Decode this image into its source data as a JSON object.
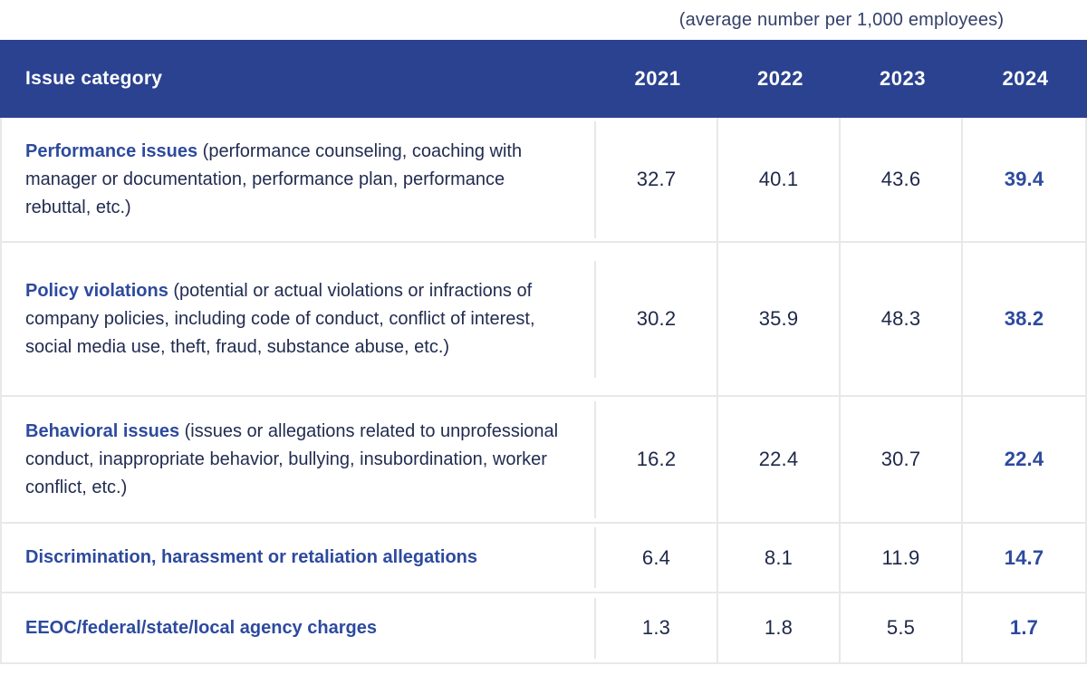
{
  "caption": "(average number per 1,000 employees)",
  "header": {
    "category_label": "Issue category",
    "years": [
      "2021",
      "2022",
      "2023",
      "2024"
    ]
  },
  "colors": {
    "header_bg": "#2b4290",
    "accent_blue": "#2d4a9e",
    "body_text": "#20294e",
    "grid_border": "#e8e8e8"
  },
  "rows": [
    {
      "title": "Performance issues",
      "desc": " (performance counseling, coaching with manager or documentation, performance plan, performance rebuttal, etc.)",
      "values": [
        "32.7",
        "40.1",
        "43.6",
        "39.4"
      ]
    },
    {
      "title": "Policy violations",
      "desc": " (potential or actual violations or infractions of company policies, including code of conduct, conflict of interest, social media use, theft, fraud, substance abuse, etc.)",
      "values": [
        "30.2",
        "35.9",
        "48.3",
        "38.2"
      ]
    },
    {
      "title": "Behavioral issues",
      "desc": " (issues or allegations related to unprofessional conduct, inappropriate behavior, bullying, insubordination, worker conflict, etc.)",
      "values": [
        "16.2",
        "22.4",
        "30.7",
        "22.4"
      ]
    },
    {
      "title": "Discrimination, harassment or retaliation allegations",
      "desc": "",
      "values": [
        "6.4",
        "8.1",
        "11.9",
        "14.7"
      ]
    },
    {
      "title": "EEOC/federal/state/local agency charges",
      "desc": "",
      "values": [
        "1.3",
        "1.8",
        "5.5",
        "1.7"
      ]
    }
  ],
  "chart_data": {
    "type": "table",
    "title": "(average number per 1,000 employees)",
    "columns": [
      "Issue category",
      "2021",
      "2022",
      "2023",
      "2024"
    ],
    "rows": [
      [
        "Performance issues (performance counseling, coaching with manager or documentation, performance plan, performance rebuttal, etc.)",
        32.7,
        40.1,
        43.6,
        39.4
      ],
      [
        "Policy violations (potential or actual violations or infractions of company policies, including code of conduct, conflict of interest, social media use, theft, fraud, substance abuse, etc.)",
        30.2,
        35.9,
        48.3,
        38.2
      ],
      [
        "Behavioral issues (issues or allegations related to unprofessional conduct, inappropriate behavior, bullying, insubordination, worker conflict, etc.)",
        16.2,
        22.4,
        30.7,
        22.4
      ],
      [
        "Discrimination, harassment or retaliation allegations",
        6.4,
        8.1,
        11.9,
        14.7
      ],
      [
        "EEOC/federal/state/local agency charges",
        1.3,
        1.8,
        5.5,
        1.7
      ]
    ],
    "notes": "2024 column values rendered in bold accent blue; earlier years in dark navy"
  }
}
